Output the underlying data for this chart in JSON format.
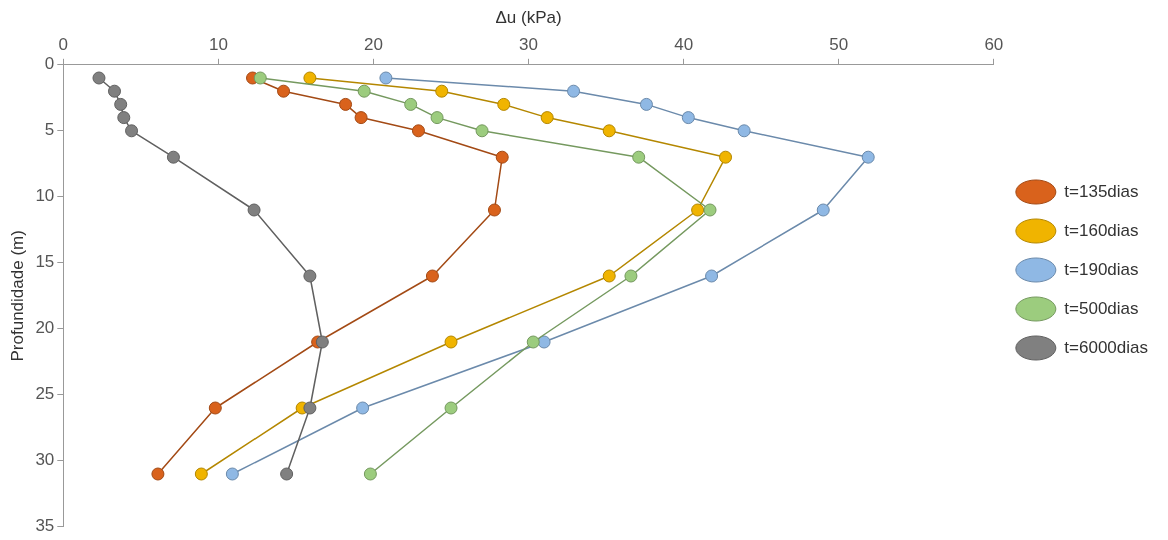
{
  "chart_data": {
    "type": "line",
    "xlabel": "Δu (kPa)",
    "ylabel": "Profundidade (m)",
    "xlim": [
      0,
      60
    ],
    "xticks": [
      0,
      10,
      20,
      30,
      40,
      50,
      60
    ],
    "ylim": [
      35,
      0
    ],
    "yticks": [
      0,
      5,
      10,
      15,
      20,
      25,
      30,
      35
    ],
    "grid": false,
    "legend": "right",
    "marker": "circle",
    "line_style": "solid",
    "series": [
      {
        "name": "t=135dias",
        "color": "#d9621c",
        "x": [
          12.2,
          14.2,
          18.2,
          19.2,
          22.9,
          28.3,
          27.8,
          23.8,
          16.4,
          9.8,
          6.1
        ],
        "values": [
          1,
          2,
          3,
          4,
          5,
          7,
          11,
          16,
          21,
          26,
          31
        ]
      },
      {
        "name": "t=160dias",
        "color": "#f0b400",
        "x": [
          15.9,
          24.4,
          28.4,
          31.2,
          35.2,
          42.7,
          40.9,
          35.2,
          25.0,
          15.4,
          8.9
        ],
        "values": [
          1,
          2,
          3,
          4,
          5,
          7,
          11,
          16,
          21,
          26,
          31
        ]
      },
      {
        "name": "t=190dias",
        "color": "#8fb8e4",
        "x": [
          20.8,
          32.9,
          37.6,
          40.3,
          43.9,
          51.9,
          49.0,
          41.8,
          31.0,
          19.3,
          10.9
        ],
        "values": [
          1,
          2,
          3,
          4,
          5,
          7,
          11,
          16,
          21,
          26,
          31
        ]
      },
      {
        "name": "t=500dias",
        "color": "#9ccc7e",
        "x": [
          12.7,
          19.4,
          22.4,
          24.1,
          27.0,
          37.1,
          41.7,
          36.6,
          30.3,
          25.0,
          19.8
        ],
        "values": [
          1,
          2,
          3,
          4,
          5,
          7,
          11,
          16,
          21,
          26,
          31
        ]
      },
      {
        "name": "t=6000dias",
        "color": "#808080",
        "x": [
          2.3,
          3.3,
          3.7,
          3.9,
          4.4,
          7.1,
          12.3,
          15.9,
          16.7,
          15.9,
          14.4
        ],
        "values": [
          1,
          2,
          3,
          4,
          5,
          7,
          11,
          16,
          21,
          26,
          31
        ]
      }
    ]
  }
}
